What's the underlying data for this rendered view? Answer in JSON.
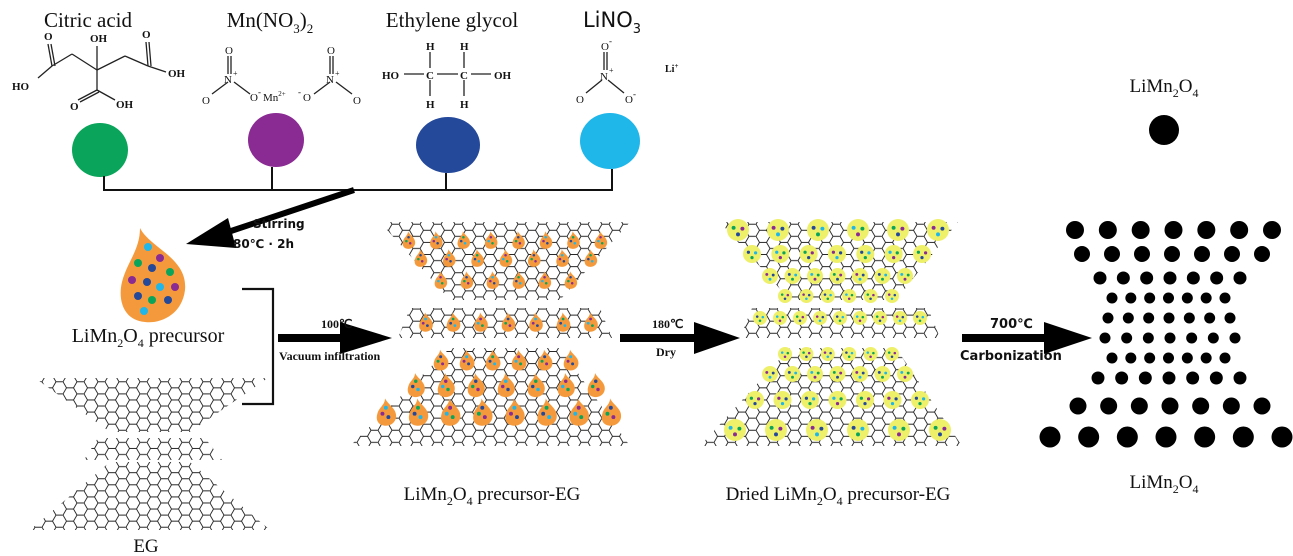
{
  "reagents": [
    {
      "name": "Citric acid",
      "color": "#0aa55a"
    },
    {
      "name": "Mn(NO3)2",
      "color": "#8a2a93"
    },
    {
      "name": "Ethylene glycol",
      "color": "#24489a"
    },
    {
      "name": "LiNO3",
      "color": "#1fb6ea"
    }
  ],
  "citric": {
    "ho_left": "HO",
    "oh_top": "OH",
    "oh_right": "OH",
    "ho_bottom": "HO",
    "o1": "O",
    "o2": "O",
    "o3": "O"
  },
  "mnno3": {
    "o_top_left": "O",
    "n_left": "N",
    "o_left": "O",
    "o_minus_left": "O",
    "mn": "Mn",
    "mn_charge": "2+",
    "o_top_right": "O",
    "n_right": "N",
    "o_minus_right": "O",
    "o_right": "O",
    "plus": "+",
    "minus": "-"
  },
  "eg": {
    "h": "H",
    "c": "C",
    "ho": "HO",
    "oh": "OH"
  },
  "lino3": {
    "o_top": "O",
    "n": "N",
    "o_left": "O",
    "o_right": "O",
    "li": "Li",
    "li_charge": "+",
    "plus": "+",
    "minus": "-"
  },
  "step1": {
    "line1": "Stirring",
    "line2": "80℃ · 2h"
  },
  "step2": {
    "temp": "100℃",
    "label": "Vacuum infiltration"
  },
  "step3": {
    "temp": "180℃",
    "label": "Dry"
  },
  "step4": {
    "temp": "700℃",
    "label": "Carbonization"
  },
  "labels": {
    "precursor": {
      "a": "LiMn",
      "s1": "2",
      "b": "O",
      "s2": "4",
      "c": " precursor"
    },
    "eg": "EG",
    "precursor_eg": {
      "a": "LiMn",
      "s1": "2",
      "b": "O",
      "s2": "4",
      "c": " precursor-EG"
    },
    "dried": {
      "pre": "Dried ",
      "a": "LiMn",
      "s1": "2",
      "b": "O",
      "s2": "4",
      "c": " precursor-EG"
    },
    "product": {
      "a": "LiMn",
      "s1": "2",
      "b": "O",
      "s2": "4"
    },
    "legend": {
      "a": "LiMn",
      "s1": "2",
      "b": "O",
      "s2": "4"
    }
  },
  "colors": {
    "drop": "#f59a3c",
    "dried_particle": "#eef06a",
    "dot": "#000000"
  }
}
